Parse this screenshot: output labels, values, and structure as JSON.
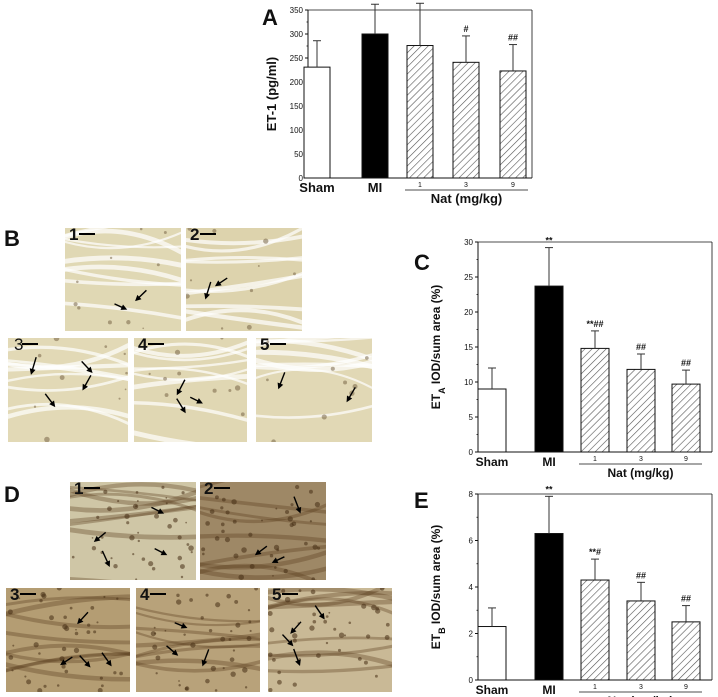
{
  "panels": {
    "a": "A",
    "b": "B",
    "c": "C",
    "d": "D",
    "e": "E"
  },
  "micrographs": {
    "b": {
      "labels": [
        "1",
        "2",
        "3",
        "4",
        "5"
      ],
      "stain_color": "#d8cfa8"
    },
    "d": {
      "labels": [
        "1",
        "2",
        "3",
        "4",
        "5"
      ],
      "stain_color": "#b9a27a"
    }
  },
  "chart_data": [
    {
      "id": "A",
      "type": "bar",
      "categories": [
        "Sham",
        "MI",
        "1",
        "3",
        "9"
      ],
      "group_label": "Nat (mg/kg)",
      "values": [
        231,
        300,
        276,
        241,
        223
      ],
      "errors": [
        55,
        62,
        88,
        55,
        55
      ],
      "significance": [
        "",
        "**",
        "",
        "#",
        "##"
      ],
      "ylabel": "ET-1 (pg/ml)",
      "ylabel_sub": "",
      "ylabel_rest": "",
      "ylim": [
        0,
        350
      ],
      "yticks": [
        0,
        50,
        100,
        150,
        200,
        250,
        300,
        350
      ],
      "fills": [
        "white",
        "black",
        "hatch",
        "hatch",
        "hatch"
      ]
    },
    {
      "id": "C",
      "type": "bar",
      "categories": [
        "Sham",
        "MI",
        "1",
        "3",
        "9"
      ],
      "group_label": "Nat (mg/kg)",
      "values": [
        9,
        23.7,
        14.8,
        11.8,
        9.7
      ],
      "errors": [
        3,
        5.5,
        2.5,
        2.2,
        2.0
      ],
      "significance": [
        "",
        "**",
        "**##",
        "##",
        "##"
      ],
      "ylabel": "ET",
      "ylabel_sub": "A",
      "ylabel_rest": " IOD/sum area (%)",
      "ylim": [
        0,
        30
      ],
      "yticks": [
        0,
        5,
        10,
        15,
        20,
        25,
        30
      ],
      "fills": [
        "white",
        "black",
        "hatch",
        "hatch",
        "hatch"
      ]
    },
    {
      "id": "E",
      "type": "bar",
      "categories": [
        "Sham",
        "MI",
        "1",
        "3",
        "9"
      ],
      "group_label": "Nat (mg/kg)",
      "values": [
        2.3,
        6.3,
        4.3,
        3.4,
        2.5
      ],
      "errors": [
        0.8,
        1.6,
        0.9,
        0.8,
        0.7
      ],
      "significance": [
        "",
        "**",
        "**#",
        "##",
        "##"
      ],
      "ylabel": "ET",
      "ylabel_sub": "B",
      "ylabel_rest": " IOD/sum area (%)",
      "ylim": [
        0,
        8
      ],
      "yticks": [
        0,
        2,
        4,
        6,
        8
      ],
      "fills": [
        "white",
        "black",
        "hatch",
        "hatch",
        "hatch"
      ]
    }
  ]
}
